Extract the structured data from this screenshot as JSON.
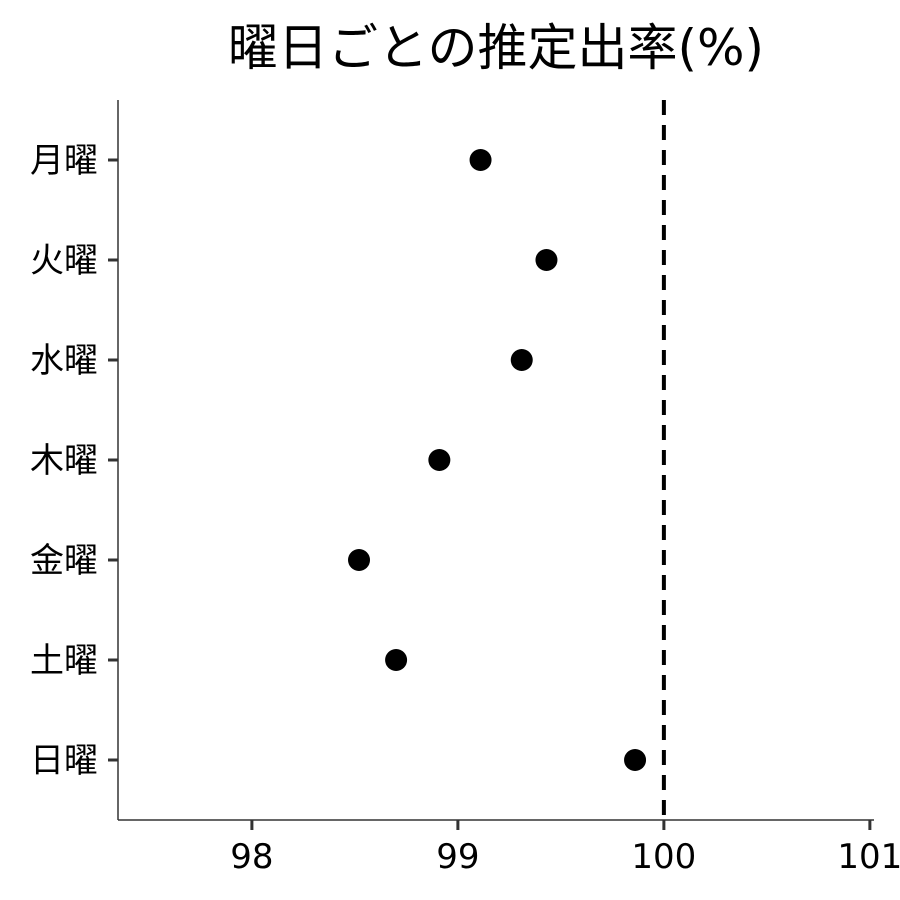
{
  "chart_data": {
    "type": "scatter",
    "title": "曜日ごとの推定出率(%)",
    "xlabel": "",
    "ylabel": "",
    "categories": [
      "月曜",
      "火曜",
      "水曜",
      "木曜",
      "金曜",
      "土曜",
      "日曜"
    ],
    "values": [
      99.11,
      99.43,
      99.31,
      98.91,
      98.52,
      98.7,
      99.86
    ],
    "xlim": [
      97.35,
      101.02
    ],
    "xticks": [
      "98",
      "99",
      "100",
      "101"
    ],
    "reference_line": {
      "x": 100,
      "style": "dashed",
      "color": "#000000"
    },
    "point_color": "#000000",
    "grid": false,
    "legend": "none"
  }
}
